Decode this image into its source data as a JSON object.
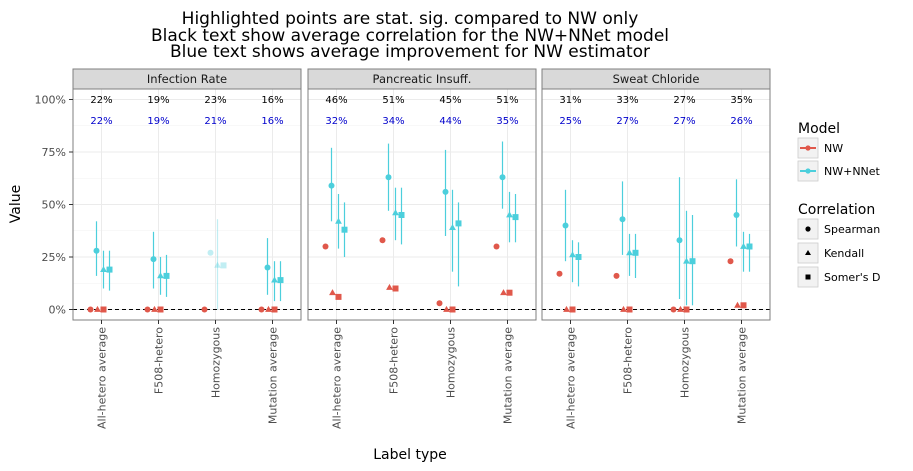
{
  "chart_data": {
    "type": "scatter",
    "title_lines": [
      "Highlighted points are stat. sig. compared to NW only",
      "Black text show average correlation for the NW+NNet model",
      "Blue text shows average improvement for NW estimator"
    ],
    "xlabel": "Label type",
    "ylabel": "Value",
    "ylim": [
      -0.05,
      1.05
    ],
    "yticks": [
      0,
      0.25,
      0.5,
      0.75,
      1.0
    ],
    "ytick_labels": [
      "0%",
      "25%",
      "50%",
      "75%",
      "100%"
    ],
    "grid": true,
    "categories": [
      "All-hetero average",
      "F508-hetero",
      "Homozygous",
      "Mutation average"
    ],
    "legend_model": {
      "title": "Model",
      "entries": [
        {
          "name": "NW",
          "color": "#E0584B"
        },
        {
          "name": "NW+NNet",
          "color": "#4CCFDC"
        }
      ]
    },
    "legend_correlation": {
      "title": "Correlation",
      "entries": [
        {
          "name": "Spearman",
          "shape": "circle"
        },
        {
          "name": "Kendall",
          "shape": "triangle"
        },
        {
          "name": "Somer's D",
          "shape": "square"
        }
      ]
    },
    "panels": [
      {
        "name": "Infection Rate",
        "annotations_black": [
          "22%",
          "19%",
          "23%",
          "16%"
        ],
        "annotations_blue": [
          "22%",
          "19%",
          "21%",
          "16%"
        ],
        "nw": [
          {
            "category": "All-hetero average",
            "spearman": 0.0,
            "kendall": 0.0,
            "somers": 0.0
          },
          {
            "category": "F508-hetero",
            "spearman": 0.0,
            "kendall": 0.0,
            "somers": 0.0
          },
          {
            "category": "Homozygous",
            "spearman": 0.0,
            "kendall": null,
            "somers": null
          },
          {
            "category": "Mutation average",
            "spearman": 0.0,
            "kendall": 0.0,
            "somers": 0.0
          }
        ],
        "nnet": [
          {
            "category": "All-hetero average",
            "significant": true,
            "spearman": {
              "y": 0.28,
              "lo": 0.16,
              "hi": 0.42
            },
            "kendall": {
              "y": 0.19,
              "lo": 0.1,
              "hi": 0.28
            },
            "somers": {
              "y": 0.19,
              "lo": 0.09,
              "hi": 0.28
            }
          },
          {
            "category": "F508-hetero",
            "significant": true,
            "spearman": {
              "y": 0.24,
              "lo": 0.1,
              "hi": 0.37
            },
            "kendall": {
              "y": 0.16,
              "lo": 0.07,
              "hi": 0.25
            },
            "somers": {
              "y": 0.16,
              "lo": 0.06,
              "hi": 0.26
            }
          },
          {
            "category": "Homozygous",
            "significant": false,
            "spearman": {
              "y": 0.27,
              "lo": null,
              "hi": null
            },
            "kendall": {
              "y": 0.21,
              "lo": 0.0,
              "hi": 0.43
            },
            "somers": {
              "y": 0.21,
              "lo": null,
              "hi": null
            }
          },
          {
            "category": "Mutation average",
            "significant": true,
            "spearman": {
              "y": 0.2,
              "lo": 0.07,
              "hi": 0.34
            },
            "kendall": {
              "y": 0.14,
              "lo": 0.04,
              "hi": 0.23
            },
            "somers": {
              "y": 0.14,
              "lo": 0.04,
              "hi": 0.23
            }
          }
        ]
      },
      {
        "name": "Pancreatic Insuff.",
        "annotations_black": [
          "46%",
          "51%",
          "45%",
          "51%"
        ],
        "annotations_blue": [
          "32%",
          "34%",
          "44%",
          "35%"
        ],
        "nw": [
          {
            "category": "All-hetero average",
            "spearman": 0.3,
            "kendall": 0.08,
            "somers": 0.06
          },
          {
            "category": "F508-hetero",
            "spearman": 0.33,
            "kendall": 0.105,
            "somers": 0.1
          },
          {
            "category": "Homozygous",
            "spearman": 0.03,
            "kendall": 0.0,
            "somers": 0.0
          },
          {
            "category": "Mutation average",
            "spearman": 0.3,
            "kendall": 0.08,
            "somers": 0.08
          }
        ],
        "nnet": [
          {
            "category": "All-hetero average",
            "significant": true,
            "spearman": {
              "y": 0.59,
              "lo": 0.42,
              "hi": 0.77
            },
            "kendall": {
              "y": 0.42,
              "lo": 0.29,
              "hi": 0.55
            },
            "somers": {
              "y": 0.38,
              "lo": 0.25,
              "hi": 0.51
            }
          },
          {
            "category": "F508-hetero",
            "significant": true,
            "spearman": {
              "y": 0.63,
              "lo": 0.47,
              "hi": 0.79
            },
            "kendall": {
              "y": 0.46,
              "lo": 0.33,
              "hi": 0.58
            },
            "somers": {
              "y": 0.45,
              "lo": 0.31,
              "hi": 0.58
            }
          },
          {
            "category": "Homozygous",
            "significant": true,
            "spearman": {
              "y": 0.56,
              "lo": 0.35,
              "hi": 0.76
            },
            "kendall": {
              "y": 0.39,
              "lo": 0.18,
              "hi": 0.57
            },
            "somers": {
              "y": 0.41,
              "lo": 0.11,
              "hi": 0.51
            }
          },
          {
            "category": "Mutation average",
            "significant": true,
            "spearman": {
              "y": 0.63,
              "lo": 0.48,
              "hi": 0.8
            },
            "kendall": {
              "y": 0.45,
              "lo": 0.32,
              "hi": 0.56
            },
            "somers": {
              "y": 0.44,
              "lo": 0.32,
              "hi": 0.55
            }
          }
        ]
      },
      {
        "name": "Sweat Chloride",
        "annotations_black": [
          "31%",
          "33%",
          "27%",
          "35%"
        ],
        "annotations_blue": [
          "25%",
          "27%",
          "27%",
          "26%"
        ],
        "nw": [
          {
            "category": "All-hetero average",
            "spearman": 0.17,
            "kendall": 0.0,
            "somers": 0.0
          },
          {
            "category": "F508-hetero",
            "spearman": 0.16,
            "kendall": 0.0,
            "somers": 0.0
          },
          {
            "category": "Homozygous",
            "spearman": 0.0,
            "kendall": 0.0,
            "somers": 0.0
          },
          {
            "category": "Mutation average",
            "spearman": 0.23,
            "kendall": 0.02,
            "somers": 0.02
          }
        ],
        "nnet": [
          {
            "category": "All-hetero average",
            "significant": true,
            "spearman": {
              "y": 0.4,
              "lo": 0.23,
              "hi": 0.57
            },
            "kendall": {
              "y": 0.26,
              "lo": 0.13,
              "hi": 0.33
            },
            "somers": {
              "y": 0.25,
              "lo": 0.11,
              "hi": 0.32
            }
          },
          {
            "category": "F508-hetero",
            "significant": true,
            "spearman": {
              "y": 0.43,
              "lo": 0.26,
              "hi": 0.61
            },
            "kendall": {
              "y": 0.27,
              "lo": 0.16,
              "hi": 0.36
            },
            "somers": {
              "y": 0.27,
              "lo": 0.15,
              "hi": 0.36
            }
          },
          {
            "category": "Homozygous",
            "significant": true,
            "spearman": {
              "y": 0.33,
              "lo": 0.05,
              "hi": 0.63
            },
            "kendall": {
              "y": 0.23,
              "lo": 0.02,
              "hi": 0.47
            },
            "somers": {
              "y": 0.23,
              "lo": 0.02,
              "hi": 0.45
            }
          },
          {
            "category": "Mutation average",
            "significant": true,
            "spearman": {
              "y": 0.45,
              "lo": 0.3,
              "hi": 0.62
            },
            "kendall": {
              "y": 0.3,
              "lo": 0.18,
              "hi": 0.37
            },
            "somers": {
              "y": 0.3,
              "lo": 0.18,
              "hi": 0.36
            }
          }
        ]
      }
    ]
  }
}
